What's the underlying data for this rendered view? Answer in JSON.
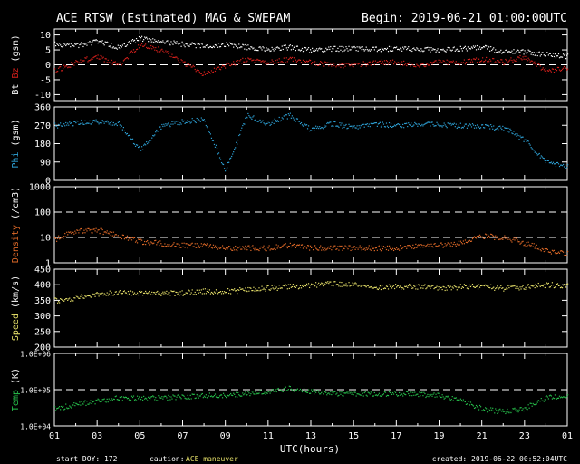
{
  "header": {
    "title": "ACE RTSW (Estimated) MAG & SWEPAM",
    "begin": "Begin: 2019-06-21 01:00:00UTC"
  },
  "footer": {
    "start_doy": "start DOY: 172",
    "caution_label": "caution:",
    "caution_value": "ACE maneuver",
    "created": "created: 2019-06-22 00:52:04UTC"
  },
  "colors": {
    "bt": "#ffffff",
    "bz": "#d9201c",
    "phi": "#2ea3d8",
    "density": "#e06a28",
    "speed": "#e8e26a",
    "temp": "#27c24c",
    "axis": "#ffffff",
    "background": "#000000"
  },
  "chart_data": [
    {
      "type": "scatter",
      "ylabel_parts": [
        "Bt",
        "Bz",
        "(gsm)"
      ],
      "ylim": [
        -12,
        12
      ],
      "yticks": [
        10,
        5,
        0,
        -5,
        -10
      ],
      "dashed_lines": [
        0
      ],
      "series": [
        {
          "name": "Bt",
          "x": [
            0,
            1,
            2,
            3,
            4,
            5,
            6,
            7,
            8,
            9,
            10,
            11,
            12,
            13,
            14,
            15,
            16,
            17,
            18,
            19,
            20,
            21,
            22,
            23,
            24
          ],
          "y": [
            7,
            6.5,
            8,
            6,
            9,
            8,
            7,
            6.5,
            7,
            6,
            5.5,
            6,
            5,
            5.5,
            5.5,
            5.5,
            5.5,
            5.5,
            5,
            5.5,
            6,
            4.5,
            4.5,
            3.5,
            3
          ]
        },
        {
          "name": "Bz",
          "x": [
            0,
            1,
            2,
            3,
            4,
            5,
            6,
            7,
            8,
            9,
            10,
            11,
            12,
            13,
            14,
            15,
            16,
            17,
            18,
            19,
            20,
            21,
            22,
            23,
            24
          ],
          "y": [
            -2,
            1,
            3,
            0,
            7,
            5,
            1,
            -3,
            0,
            2,
            1,
            2,
            1,
            0,
            0,
            1,
            1,
            0,
            1,
            1,
            2,
            1,
            3,
            -2,
            -1
          ]
        }
      ]
    },
    {
      "type": "scatter",
      "ylabel_parts": [
        "Phi",
        "(gsm)"
      ],
      "ylim": [
        0,
        360
      ],
      "yticks": [
        360,
        270,
        180,
        90,
        0
      ],
      "dashed_lines": [],
      "series": [
        {
          "name": "Phi",
          "x": [
            0,
            1,
            2,
            3,
            4,
            5,
            6,
            7,
            8,
            9,
            10,
            11,
            12,
            13,
            14,
            15,
            16,
            17,
            18,
            19,
            20,
            21,
            22,
            23,
            24
          ],
          "y": [
            270,
            285,
            290,
            280,
            150,
            270,
            290,
            300,
            50,
            320,
            280,
            320,
            250,
            280,
            260,
            280,
            270,
            280,
            275,
            270,
            265,
            260,
            200,
            90,
            70
          ]
        }
      ]
    },
    {
      "type": "scatter",
      "ylabel_parts": [
        "Density",
        "(/cm3)"
      ],
      "yscale": "log",
      "ylim": [
        1,
        1000
      ],
      "yticks": [
        1000,
        100,
        10,
        1
      ],
      "dashed_lines": [
        100,
        10
      ],
      "series": [
        {
          "name": "Density",
          "x": [
            0,
            1,
            2,
            3,
            4,
            5,
            6,
            7,
            8,
            9,
            10,
            11,
            12,
            13,
            14,
            15,
            16,
            17,
            18,
            19,
            20,
            21,
            22,
            23,
            24
          ],
          "y": [
            8,
            18,
            20,
            12,
            7,
            6,
            5,
            5,
            4,
            4,
            4,
            5,
            4,
            4,
            4,
            4,
            4,
            5,
            5,
            6,
            12,
            10,
            6,
            3,
            2.5
          ]
        }
      ]
    },
    {
      "type": "scatter",
      "ylabel_parts": [
        "Speed",
        "(km/s)"
      ],
      "ylim": [
        200,
        450
      ],
      "yticks": [
        450,
        400,
        350,
        300,
        250,
        200
      ],
      "dashed_lines": [],
      "series": [
        {
          "name": "Speed",
          "x": [
            0,
            1,
            2,
            3,
            4,
            5,
            6,
            7,
            8,
            9,
            10,
            11,
            12,
            13,
            14,
            15,
            16,
            17,
            18,
            19,
            20,
            21,
            22,
            23,
            24
          ],
          "y": [
            350,
            360,
            370,
            375,
            375,
            375,
            375,
            380,
            380,
            385,
            390,
            395,
            400,
            405,
            400,
            395,
            395,
            395,
            390,
            395,
            395,
            390,
            395,
            400,
            400
          ]
        }
      ]
    },
    {
      "type": "scatter",
      "ylabel_parts": [
        "Temp",
        "(K)"
      ],
      "yscale": "log",
      "ylim": [
        10000,
        1000000
      ],
      "yticks": [
        1000000,
        100000,
        10000
      ],
      "ytick_labels": [
        "1.0E+06",
        "1.0E+05",
        "1.0E+04"
      ],
      "dashed_lines": [
        100000
      ],
      "series": [
        {
          "name": "Temp",
          "x": [
            0,
            1,
            2,
            3,
            4,
            5,
            6,
            7,
            8,
            9,
            10,
            11,
            12,
            13,
            14,
            15,
            16,
            17,
            18,
            19,
            20,
            21,
            22,
            23,
            24
          ],
          "y": [
            30000,
            40000,
            50000,
            60000,
            60000,
            60000,
            65000,
            70000,
            70000,
            80000,
            90000,
            110000,
            90000,
            80000,
            80000,
            80000,
            80000,
            75000,
            70000,
            50000,
            30000,
            25000,
            30000,
            60000,
            70000
          ]
        }
      ]
    }
  ],
  "xaxis": {
    "label": "UTC(hours)",
    "range": [
      0,
      24
    ],
    "tick_labels": [
      "01",
      "03",
      "05",
      "07",
      "09",
      "11",
      "13",
      "15",
      "17",
      "19",
      "21",
      "23",
      "01"
    ]
  }
}
